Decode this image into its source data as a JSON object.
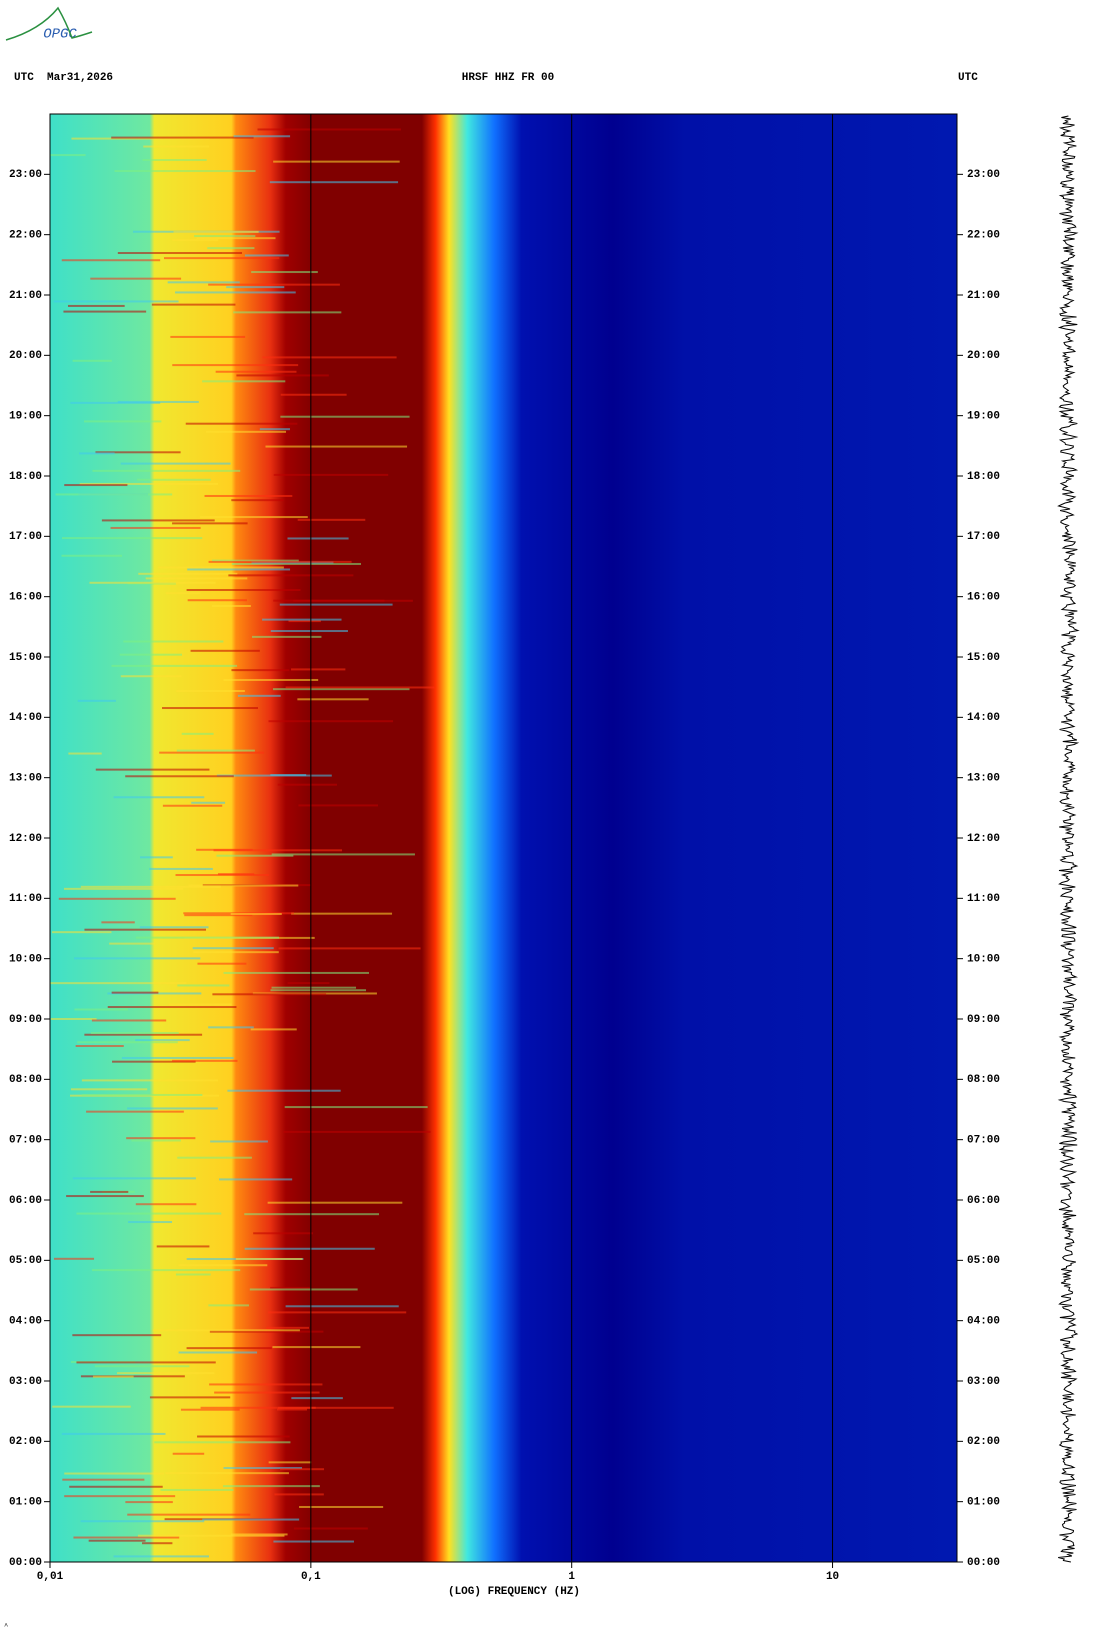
{
  "chart_data": {
    "type": "spectrogram",
    "logo": "OPGC",
    "title_left": "UTC  Mar31,2026",
    "title": "HRSF HHZ FR 00",
    "title_right": "UTC",
    "xlabel": "(LOG) FREQUENCY (HZ)",
    "xscale": "log",
    "xlim": [
      0.01,
      30
    ],
    "xticks": [
      {
        "value": 0.01,
        "label": "0,01"
      },
      {
        "value": 0.1,
        "label": "0,1"
      },
      1,
      10
    ],
    "ylim": [
      0,
      24
    ],
    "yticks": [
      {
        "value": 0,
        "label": "00:00"
      },
      {
        "value": 1,
        "label": "01:00"
      },
      {
        "value": 2,
        "label": "02:00"
      },
      {
        "value": 3,
        "label": "03:00"
      },
      {
        "value": 4,
        "label": "04:00"
      },
      {
        "value": 5,
        "label": "05:00"
      },
      {
        "value": 6,
        "label": "06:00"
      },
      {
        "value": 7,
        "label": "07:00"
      },
      {
        "value": 8,
        "label": "08:00"
      },
      {
        "value": 9,
        "label": "09:00"
      },
      {
        "value": 10,
        "label": "10:00"
      },
      {
        "value": 11,
        "label": "11:00"
      },
      {
        "value": 12,
        "label": "12:00"
      },
      {
        "value": 13,
        "label": "13:00"
      },
      {
        "value": 14,
        "label": "14:00"
      },
      {
        "value": 15,
        "label": "15:00"
      },
      {
        "value": 16,
        "label": "16:00"
      },
      {
        "value": 17,
        "label": "17:00"
      },
      {
        "value": 18,
        "label": "18:00"
      },
      {
        "value": 19,
        "label": "19:00"
      },
      {
        "value": 20,
        "label": "20:00"
      },
      {
        "value": 21,
        "label": "21:00"
      },
      {
        "value": 22,
        "label": "22:00"
      },
      {
        "value": 23,
        "label": "23:00"
      }
    ],
    "grid": true
  }
}
